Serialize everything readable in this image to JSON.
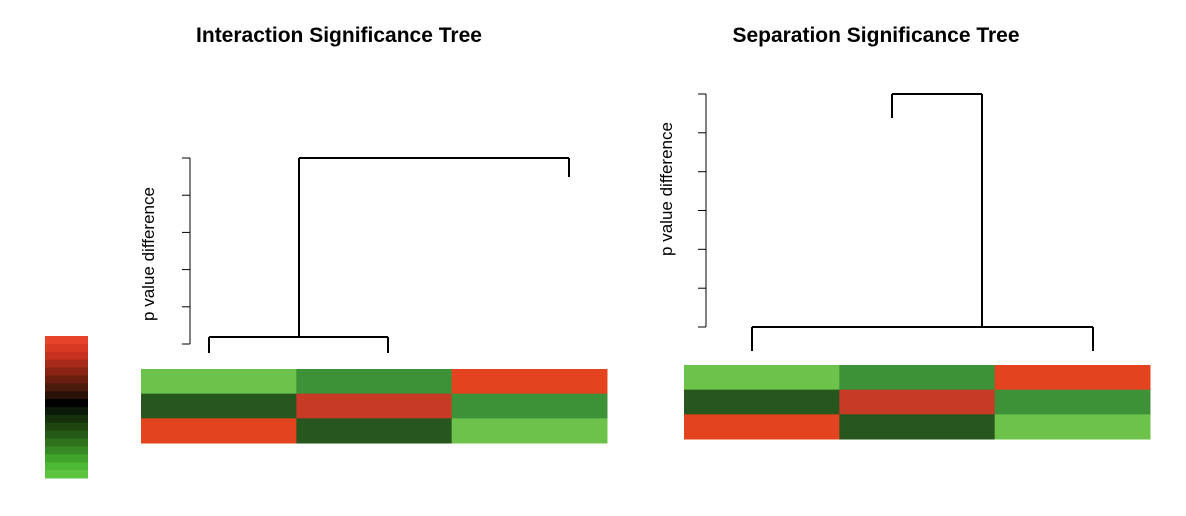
{
  "color_scale": {
    "colors": [
      "#e8442a",
      "#d93a24",
      "#c6301f",
      "#a82a1a",
      "#8b2415",
      "#6b1d10",
      "#4a1a0d",
      "#2a1208",
      "#000000",
      "#0b1a08",
      "#16300c",
      "#1e4510",
      "#255b16",
      "#2e721c",
      "#378a23",
      "#40a32a",
      "#4cb833",
      "#5cc43f"
    ]
  },
  "chart_data": [
    {
      "type": "dendrogram-heatmap",
      "title": "Interaction Significance Tree",
      "ylabel": "p value difference",
      "yticks_count": 6,
      "tree": {
        "leaves": [
          {
            "position": 0,
            "height": 0.05
          },
          {
            "position": 1,
            "height": 0.05
          },
          {
            "position": 2,
            "height": 0.9
          }
        ],
        "merges": [
          {
            "left": 0,
            "right": 1,
            "height": 0.05
          },
          {
            "left_center": 0.5,
            "right": 2,
            "height": 1.0
          }
        ]
      },
      "heatmap": {
        "rows": 3,
        "cols": 3,
        "colors": [
          [
            "#6cc24a",
            "#3d9136",
            "#e3441f"
          ],
          [
            "#28561f",
            "#c63a26",
            "#3d9136"
          ],
          [
            "#e3441f",
            "#28561f",
            "#6cc24a"
          ]
        ]
      }
    },
    {
      "type": "dendrogram-heatmap",
      "title": "Separation Significance Tree",
      "ylabel": "p value difference",
      "yticks_count": 7,
      "tree": {
        "leaves": [
          {
            "position": 0,
            "height": 0.0
          },
          {
            "position": 1,
            "height": 0.9
          },
          {
            "position": 2,
            "height": 0.0
          }
        ],
        "merges": [
          {
            "left": 0,
            "right": 2,
            "height": 0.0
          },
          {
            "left": 1,
            "right_center": 1.5,
            "height": 1.0
          }
        ]
      },
      "heatmap": {
        "rows": 3,
        "cols": 3,
        "colors": [
          [
            "#6cc24a",
            "#3d9136",
            "#e3441f"
          ],
          [
            "#28561f",
            "#c63a26",
            "#3d9136"
          ],
          [
            "#e3441f",
            "#28561f",
            "#6cc24a"
          ]
        ]
      }
    }
  ]
}
